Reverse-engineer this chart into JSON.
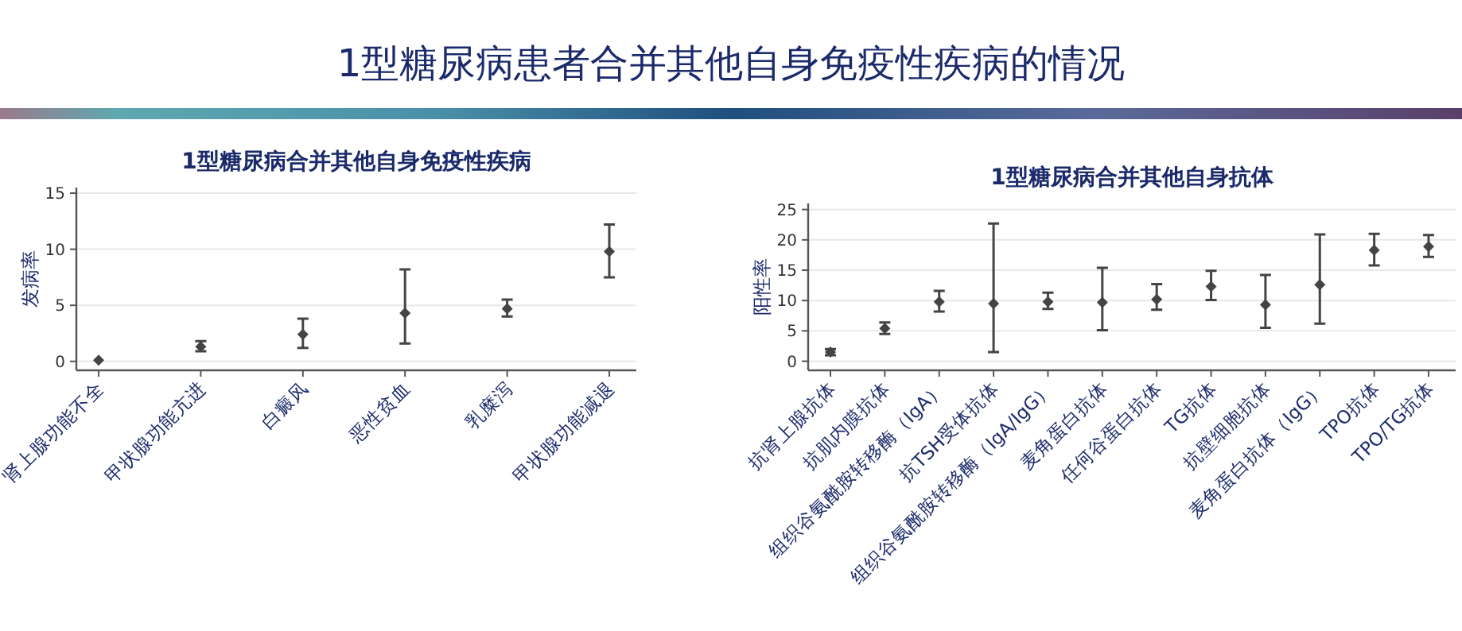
{
  "chart_data": [
    {
      "type": "scatter",
      "title": "1型糖尿病合并其他自身免疫性疾病",
      "ylabel": "发病率",
      "annotations": [
        "1型糖尿病患者合并其他自身免疫性疾病的情况"
      ],
      "categories": [
        "肾上腺功能不全",
        "甲状腺功能亢进",
        "白癜风",
        "恶性贫血",
        "乳糜泻",
        "甲状腺功能减退"
      ],
      "series": [
        {
          "color": "#444444",
          "values": [
            0.1,
            1.3,
            2.4,
            4.3,
            4.7,
            9.8
          ],
          "errors": [
            null,
            [
              0.9,
              1.8
            ],
            [
              1.2,
              3.8
            ],
            [
              1.6,
              8.2
            ],
            [
              4.0,
              5.5
            ],
            [
              7.5,
              12.2
            ]
          ]
        }
      ],
      "ylim": [
        -0.8,
        15.5
      ],
      "yticks": [
        0,
        5,
        10,
        15
      ],
      "grid": "y",
      "marker": "diamond"
    },
    {
      "type": "scatter",
      "title": "1型糖尿病合并其他自身抗体",
      "ylabel": "阳性率",
      "categories": [
        "抗肾上腺抗体",
        "抗肌内膜抗体",
        "组织谷氨酰胺转移酶（IgA）",
        "抗TSH受体抗体",
        "组织谷氨酰胺转移酶（IgA/IgG）",
        "麦角蛋白抗体",
        "任何谷蛋白抗体",
        "TG抗体",
        "抗壁细胞抗体",
        "麦角蛋白抗体（IgG）",
        "TPO抗体",
        "TPO/TG抗体"
      ],
      "series": [
        {
          "color": "#444444",
          "values": [
            1.5,
            5.4,
            9.8,
            9.5,
            9.8,
            9.7,
            10.2,
            12.3,
            9.3,
            12.6,
            18.3,
            18.9
          ],
          "errors": [
            [
              1.0,
              2.0
            ],
            [
              4.5,
              6.4
            ],
            [
              8.2,
              11.6
            ],
            [
              1.5,
              22.7
            ],
            [
              8.6,
              11.3
            ],
            [
              5.1,
              15.4
            ],
            [
              8.5,
              12.7
            ],
            [
              10.1,
              14.9
            ],
            [
              5.5,
              14.2
            ],
            [
              6.2,
              20.9
            ],
            [
              15.8,
              21.0
            ],
            [
              17.2,
              20.8
            ]
          ]
        }
      ],
      "ylim": [
        -1.5,
        26
      ],
      "yticks": [
        0,
        5,
        10,
        15,
        20,
        25
      ],
      "grid": "y",
      "marker": "diamond"
    }
  ]
}
